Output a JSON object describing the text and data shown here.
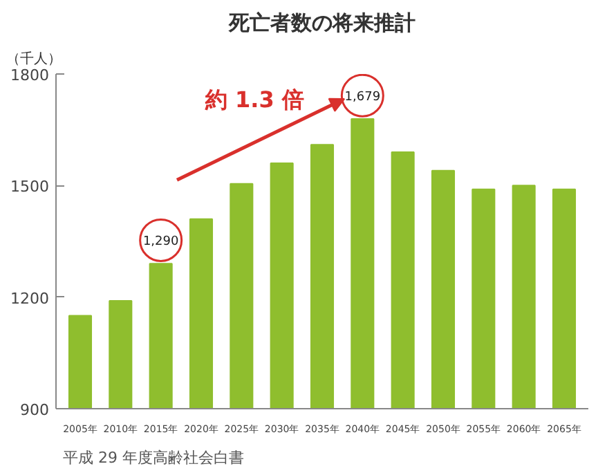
{
  "chart_data": {
    "type": "bar",
    "title": "死亡者数の将来推計",
    "ylabel": "（千人）",
    "categories": [
      "2005年",
      "2010年",
      "2015年",
      "2020年",
      "2025年",
      "2030年",
      "2035年",
      "2040年",
      "2045年",
      "2050年",
      "2055年",
      "2060年",
      "2065年"
    ],
    "values": [
      1150,
      1190,
      1290,
      1410,
      1505,
      1560,
      1610,
      1679,
      1590,
      1540,
      1490,
      1500,
      1490
    ],
    "value_labels": [
      null,
      null,
      "1,290",
      null,
      null,
      null,
      null,
      "1,679",
      null,
      null,
      null,
      null,
      null
    ],
    "color": "#8fbe2e",
    "ylim": [
      900,
      1800
    ],
    "yticks": [
      900,
      1200,
      1500,
      1800
    ],
    "grid": false,
    "annotations": [
      "約 1.3 倍",
      "平成 29 年度高齢社会白書"
    ]
  }
}
